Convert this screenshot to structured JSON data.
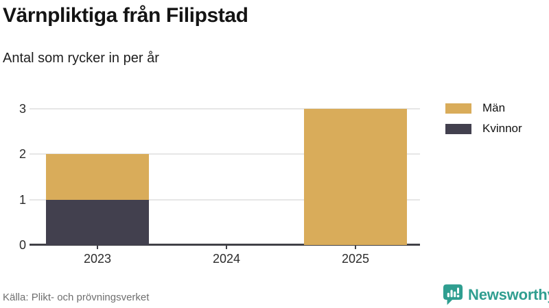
{
  "header": {
    "title": "Värnpliktiga från Filipstad",
    "subtitle": "Antal som rycker in per år"
  },
  "chart_data": {
    "type": "bar",
    "stacked": true,
    "categories": [
      "2023",
      "2024",
      "2025"
    ],
    "series": [
      {
        "name": "Kvinnor",
        "color": "#42404e",
        "values": [
          1,
          0,
          0
        ]
      },
      {
        "name": "Män",
        "color": "#d9ac5a",
        "values": [
          1,
          0,
          3
        ]
      }
    ],
    "legend_order": [
      "Män",
      "Kvinnor"
    ],
    "title": "Värnpliktiga från Filipstad",
    "subtitle": "Antal som rycker in per år",
    "xlabel": "",
    "ylabel": "",
    "yticks": [
      0,
      1,
      2,
      3
    ],
    "ylim": [
      0,
      3.2
    ],
    "grid": true,
    "legend_position": "right"
  },
  "footer": {
    "source": "Källa: Plikt- och prövningsverket",
    "brand": "Newsworthy"
  },
  "colors": {
    "axis": "#414147",
    "gridline": "#e6e6e6",
    "brand_teal": "#2f9e90"
  }
}
